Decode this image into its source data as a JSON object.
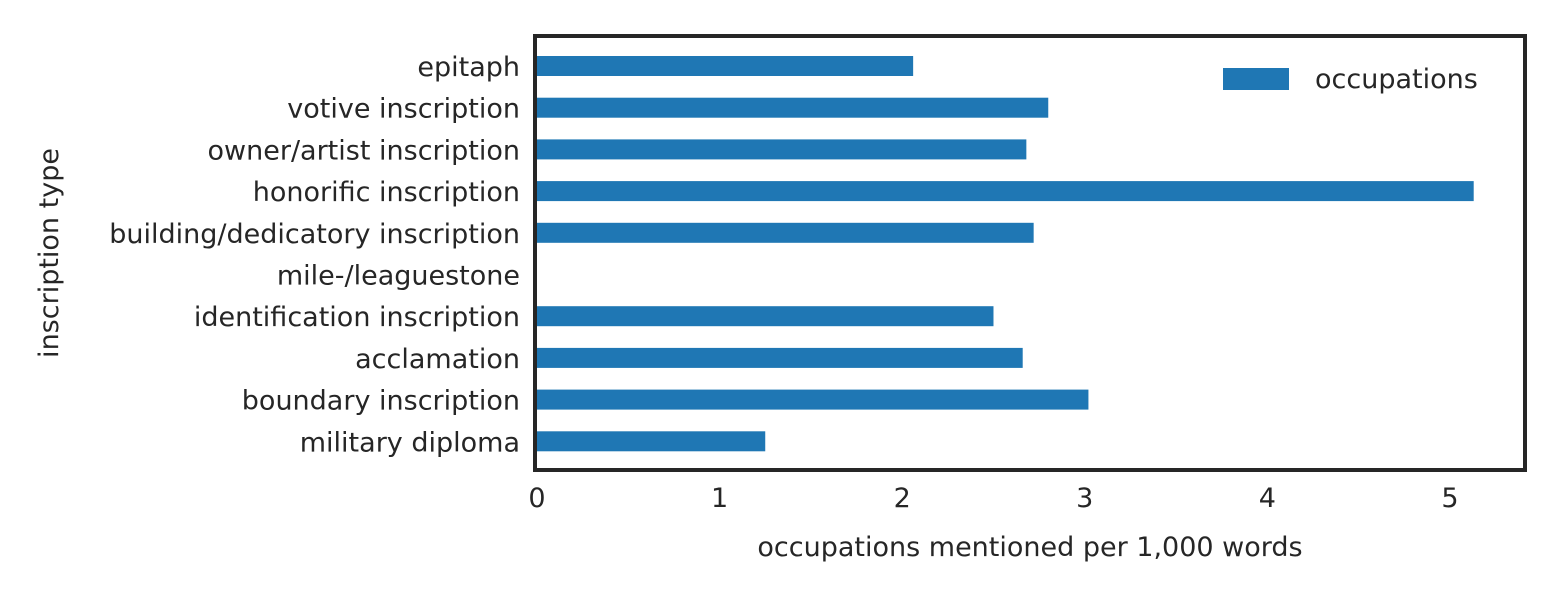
{
  "chart_data": {
    "type": "bar",
    "orientation": "horizontal",
    "title": "",
    "xlabel": "occupations mentioned per 1,000 words",
    "ylabel": "inscription type",
    "xlim": [
      0,
      5.4
    ],
    "xticks": [
      0,
      1,
      2,
      3,
      4,
      5
    ],
    "categories": [
      "epitaph",
      "votive inscription",
      "owner/artist inscription",
      "honorific inscription",
      "building/dedicatory inscription",
      "mile-/leaguestone",
      "identification inscription",
      "acclamation",
      "boundary inscription",
      "military diploma"
    ],
    "series": [
      {
        "name": "occupations",
        "color": "#1f77b4",
        "values": [
          2.06,
          2.8,
          2.68,
          5.13,
          2.72,
          0,
          2.5,
          2.66,
          3.02,
          1.25
        ]
      }
    ],
    "legend_position": "upper right",
    "grid": false
  }
}
